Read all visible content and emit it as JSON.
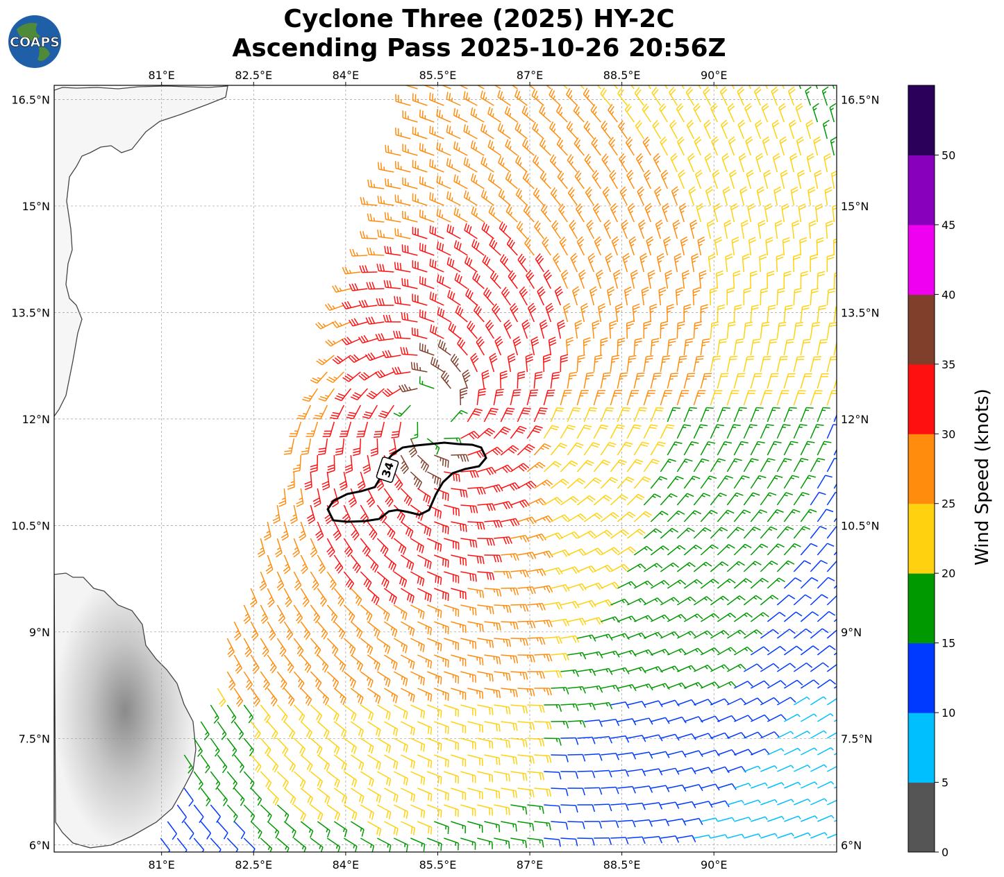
{
  "title": {
    "line1": "Cyclone Three (2025) HY-2C",
    "line2": "Ascending Pass 2025-10-26 20:56Z"
  },
  "logo": {
    "text": "COAPS",
    "icon": "globe-logo-icon"
  },
  "map": {
    "lon_range": [
      79.25,
      92.0
    ],
    "lat_range": [
      5.9,
      16.7
    ],
    "lon_ticks": [
      "81°E",
      "82.5°E",
      "84°E",
      "85.5°E",
      "87°E",
      "88.5°E",
      "90°E"
    ],
    "lat_ticks": [
      "16.5°N",
      "15°N",
      "13.5°N",
      "12°N",
      "10.5°N",
      "9°N",
      "7.5°N",
      "6°N"
    ],
    "grid": true,
    "contour_label": "34",
    "storm_center_lon": 85.45,
    "storm_center_lat": 12.05
  },
  "colorbar": {
    "label": "Wind Speed (knots)",
    "ticks": [
      "0",
      "5",
      "10",
      "15",
      "20",
      "25",
      "30",
      "35",
      "40",
      "45",
      "50"
    ],
    "bins": [
      {
        "min": 0,
        "max": 5,
        "color": "#555555"
      },
      {
        "min": 5,
        "max": 10,
        "color": "#00bfff"
      },
      {
        "min": 10,
        "max": 15,
        "color": "#0039ff"
      },
      {
        "min": 15,
        "max": 20,
        "color": "#009900"
      },
      {
        "min": 20,
        "max": 25,
        "color": "#ffd10f"
      },
      {
        "min": 25,
        "max": 30,
        "color": "#ff8c0d"
      },
      {
        "min": 30,
        "max": 35,
        "color": "#ff1010"
      },
      {
        "min": 35,
        "max": 40,
        "color": "#7f3f2a"
      },
      {
        "min": 40,
        "max": 45,
        "color": "#f000f0"
      },
      {
        "min": 45,
        "max": 50,
        "color": "#8800bb"
      },
      {
        "min": 50,
        "max": 55,
        "color": "#2a005a"
      }
    ]
  }
}
